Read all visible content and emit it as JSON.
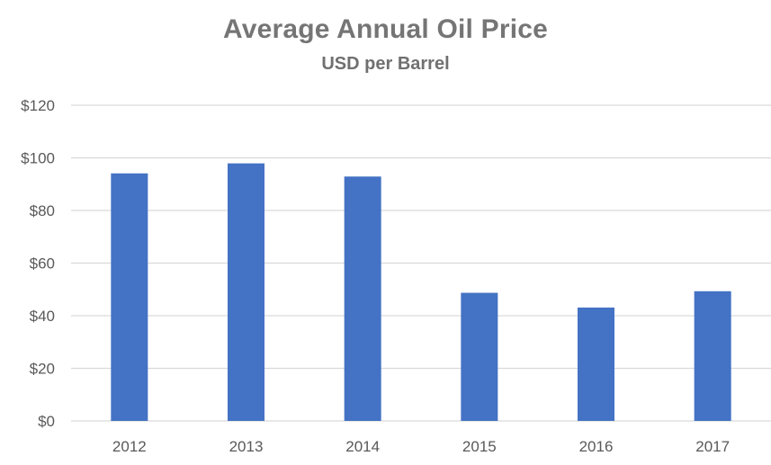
{
  "chart_data": {
    "type": "bar",
    "title": "Average Annual Oil Price",
    "subtitle": "USD per Barrel",
    "xlabel": "",
    "ylabel": "",
    "categories": [
      "2012",
      "2013",
      "2014",
      "2015",
      "2016",
      "2017"
    ],
    "values": [
      94.1,
      97.9,
      92.9,
      48.7,
      43.1,
      49.3
    ],
    "ylim": [
      0,
      120
    ],
    "yticks": [
      0,
      20,
      40,
      60,
      80,
      100,
      120
    ],
    "ytick_labels": [
      "$0",
      "$20",
      "$40",
      "$60",
      "$80",
      "$100",
      "$120"
    ],
    "grid": true,
    "legend": "none",
    "bar_color": "#4472C4",
    "grid_color": "#D9D9D9",
    "tick_label_color": "#595959"
  }
}
